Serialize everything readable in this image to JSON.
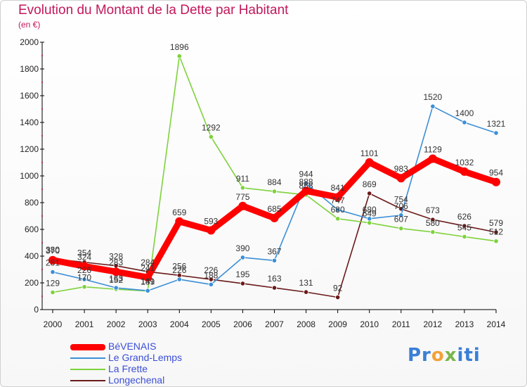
{
  "title": "Evolution du Montant de la Dette par Habitant",
  "unit": "(en €)",
  "logo": "Proxiti",
  "chart_data": {
    "type": "line",
    "title": "Evolution du Montant de la Dette par Habitant",
    "ylabel": "(en €)",
    "xlabel": "",
    "x": [
      "2000",
      "2001",
      "2002",
      "2003",
      "2004",
      "2005",
      "2006",
      "2007",
      "2008",
      "2009",
      "2010",
      "2011",
      "2012",
      "2013",
      "2014"
    ],
    "ylim": [
      0,
      2000
    ],
    "yticks": [
      0,
      200,
      400,
      600,
      800,
      1000,
      1200,
      1400,
      1600,
      1800,
      2000
    ],
    "grid": false,
    "legend": "bottom-left",
    "series": [
      {
        "name": "BéVENAIS",
        "color": "#ff0000",
        "values": [
          370,
          324,
          283,
          241,
          659,
          593,
          775,
          685,
          888,
          841,
          1101,
          983,
          1129,
          1032,
          954
        ]
      },
      {
        "name": "Le Grand-Lemps",
        "color": "#3b8fd6",
        "values": [
          281,
          226,
          163,
          141,
          226,
          188,
          390,
          367,
          944,
          747,
          680,
          706,
          1520,
          1400,
          1321
        ]
      },
      {
        "name": "La Frette",
        "color": "#7ed23c",
        "values": [
          129,
          170,
          152,
          139,
          1896,
          1292,
          911,
          884,
          858,
          680,
          649,
          607,
          580,
          545,
          512
        ]
      },
      {
        "name": "Longechenal",
        "color": "#6b1a1a",
        "values": [
          380,
          354,
          328,
          284,
          256,
          226,
          195,
          163,
          131,
          92,
          869,
          754,
          673,
          626,
          579
        ]
      }
    ]
  }
}
